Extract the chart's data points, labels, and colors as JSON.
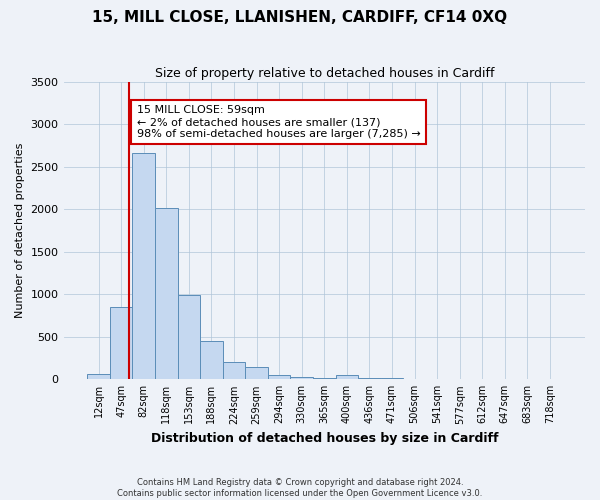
{
  "title": "15, MILL CLOSE, LLANISHEN, CARDIFF, CF14 0XQ",
  "subtitle": "Size of property relative to detached houses in Cardiff",
  "xlabel": "Distribution of detached houses by size in Cardiff",
  "ylabel": "Number of detached properties",
  "bin_labels": [
    "12sqm",
    "47sqm",
    "82sqm",
    "118sqm",
    "153sqm",
    "188sqm",
    "224sqm",
    "259sqm",
    "294sqm",
    "330sqm",
    "365sqm",
    "400sqm",
    "436sqm",
    "471sqm",
    "506sqm",
    "541sqm",
    "577sqm",
    "612sqm",
    "647sqm",
    "683sqm",
    "718sqm"
  ],
  "bar_heights": [
    60,
    850,
    2660,
    2010,
    990,
    450,
    200,
    140,
    55,
    30,
    20,
    50,
    10,
    10,
    5,
    5,
    5,
    2,
    2,
    2,
    2
  ],
  "bar_color": "#c5d8f0",
  "bar_edge_color": "#5b8db8",
  "vline_color": "#cc0000",
  "annotation_text": "15 MILL CLOSE: 59sqm\n← 2% of detached houses are smaller (137)\n98% of semi-detached houses are larger (7,285) →",
  "annotation_box_color": "#ffffff",
  "annotation_box_edge_color": "#cc0000",
  "ylim": [
    0,
    3500
  ],
  "yticks": [
    0,
    500,
    1000,
    1500,
    2000,
    2500,
    3000,
    3500
  ],
  "footer_line1": "Contains HM Land Registry data © Crown copyright and database right 2024.",
  "footer_line2": "Contains public sector information licensed under the Open Government Licence v3.0.",
  "bg_color": "#eef2f8",
  "plot_bg_color": "#eef2f8"
}
